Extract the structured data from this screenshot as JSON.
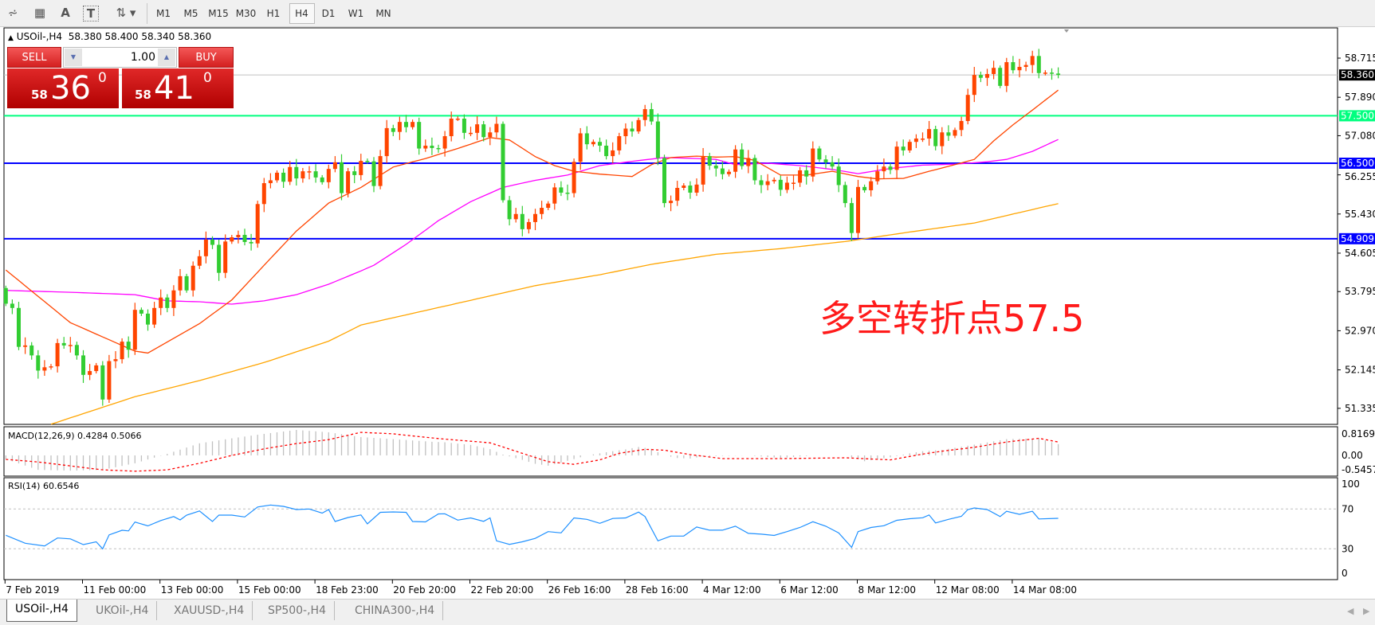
{
  "toolbar": {
    "icons": [
      "elliott-wave-icon",
      "fibonacci-grid-icon",
      "text-icon",
      "text-label-icon",
      "arrows-icon"
    ],
    "timeframes": [
      "M1",
      "M5",
      "M15",
      "M30",
      "H1",
      "H4",
      "D1",
      "W1",
      "MN"
    ],
    "active_timeframe": "H4"
  },
  "chart_header": {
    "symbol": "USOil-,H4",
    "ohlc": "58.380 58.400 58.340 58.360"
  },
  "trade_panel": {
    "sell_label": "SELL",
    "buy_label": "BUY",
    "lot": "1.00",
    "sell_price": {
      "prefix": "58",
      "main": "36",
      "sup": "0"
    },
    "buy_price": {
      "prefix": "58",
      "main": "41",
      "sup": "0"
    }
  },
  "annotation": "多空转折点57.5",
  "colors": {
    "bull": "#ff4500",
    "bear": "#32cd32",
    "support": "#0000ff",
    "pivot": "#00ff7f",
    "ma_fast": "#ff4500",
    "ma_mid": "#ff00ff",
    "ma_slow": "#ffa500",
    "rsi": "#1e90ff",
    "macd_signal": "#ff0000",
    "macd_hist": "#c0c0c0"
  },
  "chart_data": {
    "type": "candlestick",
    "closes": [
      53.54,
      53.45,
      52.63,
      52.66,
      52.45,
      52.13,
      52.2,
      52.22,
      52.71,
      52.66,
      52.67,
      52.45,
      52.04,
      52.12,
      52.24,
      51.52,
      52.33,
      52.37,
      52.74,
      52.57,
      53.41,
      53.33,
      53.1,
      53.45,
      53.67,
      53.45,
      53.82,
      54.12,
      53.82,
      54.34,
      54.54,
      54.89,
      54.78,
      54.19,
      54.85,
      54.94,
      54.99,
      54.84,
      54.81,
      55.64,
      56.08,
      56.14,
      56.3,
      56.11,
      56.42,
      56.18,
      56.33,
      56.33,
      56.2,
      56.1,
      56.38,
      56.52,
      55.87,
      56.33,
      56.25,
      56.55,
      56.54,
      56.02,
      56.65,
      57.24,
      57.16,
      57.37,
      57.26,
      57.37,
      56.81,
      56.87,
      56.82,
      56.81,
      57.07,
      57.44,
      57.44,
      57.14,
      57.14,
      57.32,
      57.05,
      57.15,
      57.33,
      55.72,
      55.32,
      55.43,
      55.11,
      55.26,
      55.43,
      55.56,
      55.65,
      55.99,
      55.88,
      55.87,
      56.53,
      57.13,
      56.9,
      56.95,
      56.87,
      56.65,
      56.77,
      57.07,
      57.23,
      57.17,
      57.41,
      57.64,
      57.38,
      56.61,
      55.66,
      55.71,
      55.98,
      56.03,
      55.88,
      56.05,
      56.65,
      56.45,
      56.39,
      56.27,
      56.32,
      56.79,
      56.44,
      56.61,
      56.14,
      56.04,
      56.12,
      56.15,
      55.94,
      56.09,
      56.09,
      56.35,
      56.22,
      56.81,
      56.58,
      56.52,
      56.43,
      56.04,
      55.66,
      55.03,
      56.0,
      55.93,
      56.12,
      56.33,
      56.43,
      56.36,
      56.85,
      56.77,
      56.95,
      57.02,
      57.02,
      57.22,
      56.86,
      57.15,
      57.08,
      57.2,
      57.39,
      57.94,
      58.36,
      58.3,
      58.38,
      58.51,
      58.13,
      58.63,
      58.46,
      58.53,
      58.57,
      58.76,
      58.4,
      58.41,
      58.39,
      58.36
    ],
    "first_open": 53.87,
    "ma_fast": {
      "bars": [
        0,
        10,
        20,
        22,
        30,
        35,
        40,
        45,
        50,
        55,
        60,
        65,
        70,
        75,
        78,
        82,
        85,
        88,
        92,
        97,
        100,
        103,
        107,
        110,
        113,
        116,
        120,
        124,
        128,
        132,
        135,
        139,
        143,
        147,
        150,
        153,
        156,
        159,
        163
      ],
      "values": [
        54.25,
        53.14,
        52.54,
        52.5,
        53.12,
        53.62,
        54.35,
        55.07,
        55.66,
        55.99,
        56.42,
        56.6,
        56.81,
        57.04,
        56.99,
        56.64,
        56.45,
        56.33,
        56.27,
        56.22,
        56.47,
        56.62,
        56.65,
        56.63,
        56.64,
        56.56,
        56.25,
        56.25,
        56.33,
        56.22,
        56.17,
        56.18,
        56.33,
        56.47,
        56.58,
        56.97,
        57.31,
        57.62,
        58.04
      ]
    },
    "ma_mid": {
      "bars": [
        0,
        10,
        20,
        25,
        30,
        35,
        40,
        45,
        50,
        55,
        57,
        62,
        67,
        72,
        77,
        82,
        87,
        92,
        97,
        102,
        107,
        110,
        113,
        118,
        123,
        128,
        132,
        137,
        142,
        147,
        152,
        155,
        159,
        163
      ],
      "values": [
        53.82,
        53.78,
        53.73,
        53.6,
        53.58,
        53.53,
        53.6,
        53.73,
        53.95,
        54.23,
        54.35,
        54.79,
        55.29,
        55.69,
        55.99,
        56.14,
        56.25,
        56.45,
        56.54,
        56.62,
        56.6,
        56.58,
        56.47,
        56.5,
        56.45,
        56.37,
        56.28,
        56.39,
        56.46,
        56.48,
        56.53,
        56.58,
        56.75,
        57.0
      ]
    },
    "ma_slow": {
      "bars": [
        7,
        20,
        30,
        40,
        50,
        55,
        70,
        82,
        92,
        100,
        110,
        120,
        130,
        140,
        150,
        163
      ],
      "values": [
        51.0,
        51.58,
        51.92,
        52.3,
        52.75,
        53.09,
        53.55,
        53.92,
        54.15,
        54.37,
        54.58,
        54.7,
        54.85,
        55.05,
        55.24,
        55.65
      ]
    },
    "hlines": [
      {
        "value": 57.5,
        "label": "57.500",
        "color": "#00ff7f"
      },
      {
        "value": 56.5,
        "label": "56.500",
        "color": "#0000ff"
      },
      {
        "value": 54.909,
        "label": "54.909",
        "color": "#0000ff"
      }
    ],
    "current_price": {
      "value": 58.36,
      "label": "58.360"
    },
    "price_ticks": [
      "58.715",
      "57.890",
      "57.080",
      "56.255",
      "55.430",
      "54.605",
      "53.795",
      "52.970",
      "52.145",
      "51.335"
    ],
    "time_labels": [
      "7 Feb 2019",
      "11 Feb 00:00",
      "13 Feb 00:00",
      "15 Feb 00:00",
      "18 Feb 23:00",
      "20 Feb 20:00",
      "22 Feb 20:00",
      "26 Feb 16:00",
      "28 Feb 16:00",
      "4 Mar 12:00",
      "6 Mar 12:00",
      "8 Mar 12:00",
      "12 Mar 08:00",
      "14 Mar 08:00"
    ],
    "macd": {
      "label": "MACD(12,26,9) 0.4284 0.5066",
      "ticks": [
        "0.8169",
        "0.00",
        "-0.5457"
      ],
      "hist": {
        "bars": [
          0,
          5,
          10,
          15,
          20,
          25,
          30,
          35,
          40,
          45,
          50,
          55,
          60,
          66,
          68,
          72,
          75,
          77,
          80,
          82,
          84,
          86,
          88,
          90,
          92,
          94,
          96,
          98,
          100,
          102,
          104,
          106,
          108,
          110,
          115,
          120,
          125,
          130,
          133,
          137,
          140,
          142,
          145,
          150,
          155,
          160,
          163
        ],
        "values": [
          -0.14,
          -0.55,
          -0.58,
          -0.55,
          -0.3,
          0.06,
          0.46,
          0.65,
          0.82,
          0.97,
          0.88,
          0.7,
          0.62,
          0.52,
          0.5,
          0.4,
          0.24,
          0.03,
          -0.17,
          -0.32,
          -0.39,
          -0.27,
          -0.14,
          0.0,
          0.08,
          0.16,
          0.23,
          0.32,
          0.25,
          0.0,
          -0.1,
          -0.12,
          -0.04,
          -0.02,
          0.0,
          -0.1,
          0.0,
          0.0,
          -0.22,
          -0.07,
          0.08,
          0.16,
          0.21,
          0.41,
          0.62,
          0.65,
          0.43
        ]
      },
      "signal": {
        "bars": [
          0,
          5,
          10,
          15,
          20,
          25,
          30,
          35,
          40,
          45,
          50,
          55,
          60,
          65,
          68,
          75,
          80,
          84,
          88,
          92,
          95,
          99,
          102,
          106,
          111,
          120,
          130,
          137,
          142,
          145,
          150,
          155,
          160,
          163
        ],
        "values": [
          -0.15,
          -0.25,
          -0.4,
          -0.55,
          -0.6,
          -0.55,
          -0.3,
          0.0,
          0.25,
          0.45,
          0.6,
          0.88,
          0.82,
          0.69,
          0.62,
          0.48,
          0.08,
          -0.24,
          -0.34,
          -0.17,
          0.08,
          0.23,
          0.2,
          0.03,
          -0.12,
          -0.12,
          -0.09,
          -0.17,
          0.05,
          0.16,
          0.31,
          0.51,
          0.65,
          0.51
        ]
      },
      "range": [
        -0.5457,
        0.8169
      ]
    },
    "rsi": {
      "label": "RSI(14) 60.6546",
      "ticks": [
        "100",
        "70",
        "30",
        "0"
      ],
      "levels": [
        70,
        30
      ],
      "bars": [
        0,
        3,
        6,
        8,
        10,
        12,
        14,
        15,
        16,
        18,
        19,
        20,
        22,
        24,
        26,
        27,
        28,
        30,
        32,
        33,
        35,
        37,
        39,
        41,
        43,
        45,
        47,
        49,
        50,
        51,
        53,
        55,
        56,
        58,
        60,
        62,
        63,
        65,
        67,
        68,
        70,
        72,
        74,
        75,
        76,
        78,
        80,
        82,
        84,
        86,
        88,
        90,
        92,
        94,
        96,
        98,
        99,
        101,
        103,
        105,
        107,
        109,
        111,
        113,
        115,
        117,
        119,
        121,
        123,
        125,
        127,
        129,
        131,
        132,
        134,
        136,
        138,
        140,
        142,
        143,
        144,
        146,
        148,
        149,
        150,
        152,
        154,
        155,
        157,
        159,
        160,
        163
      ],
      "values": [
        43.6,
        35.6,
        32.9,
        40.9,
        40,
        34.2,
        37,
        30,
        44,
        48.6,
        48,
        56.9,
        53,
        58.4,
        62.4,
        59,
        63.8,
        68,
        57.4,
        63.8,
        63.8,
        62,
        72,
        74,
        72.6,
        69.4,
        70,
        65.8,
        69.4,
        57.4,
        61.4,
        64,
        55,
        66.6,
        67,
        66.6,
        57.4,
        57,
        65,
        65.2,
        58.8,
        61,
        57.6,
        61,
        38,
        34.5,
        37,
        40.5,
        47.3,
        46,
        61,
        59.6,
        55.6,
        60.5,
        61,
        66.9,
        62.4,
        38,
        42.8,
        42.8,
        51.9,
        48.7,
        48.7,
        52.7,
        45.5,
        44.7,
        43.4,
        47.3,
        51.4,
        57.2,
        52.7,
        46,
        31.4,
        47.3,
        51.4,
        53.2,
        58.6,
        60.2,
        61.2,
        64,
        56,
        59.6,
        62.6,
        69.4,
        71,
        69.4,
        62.4,
        67.7,
        64.6,
        67.7,
        60,
        60.65
      ]
    }
  },
  "tabs": [
    {
      "label": "USOil-,H4",
      "active": true
    },
    {
      "label": "UKOil-,H4",
      "active": false
    },
    {
      "label": "XAUUSD-,H4",
      "active": false
    },
    {
      "label": "SP500-,H4",
      "active": false
    },
    {
      "label": "CHINA300-,H4",
      "active": false
    }
  ]
}
